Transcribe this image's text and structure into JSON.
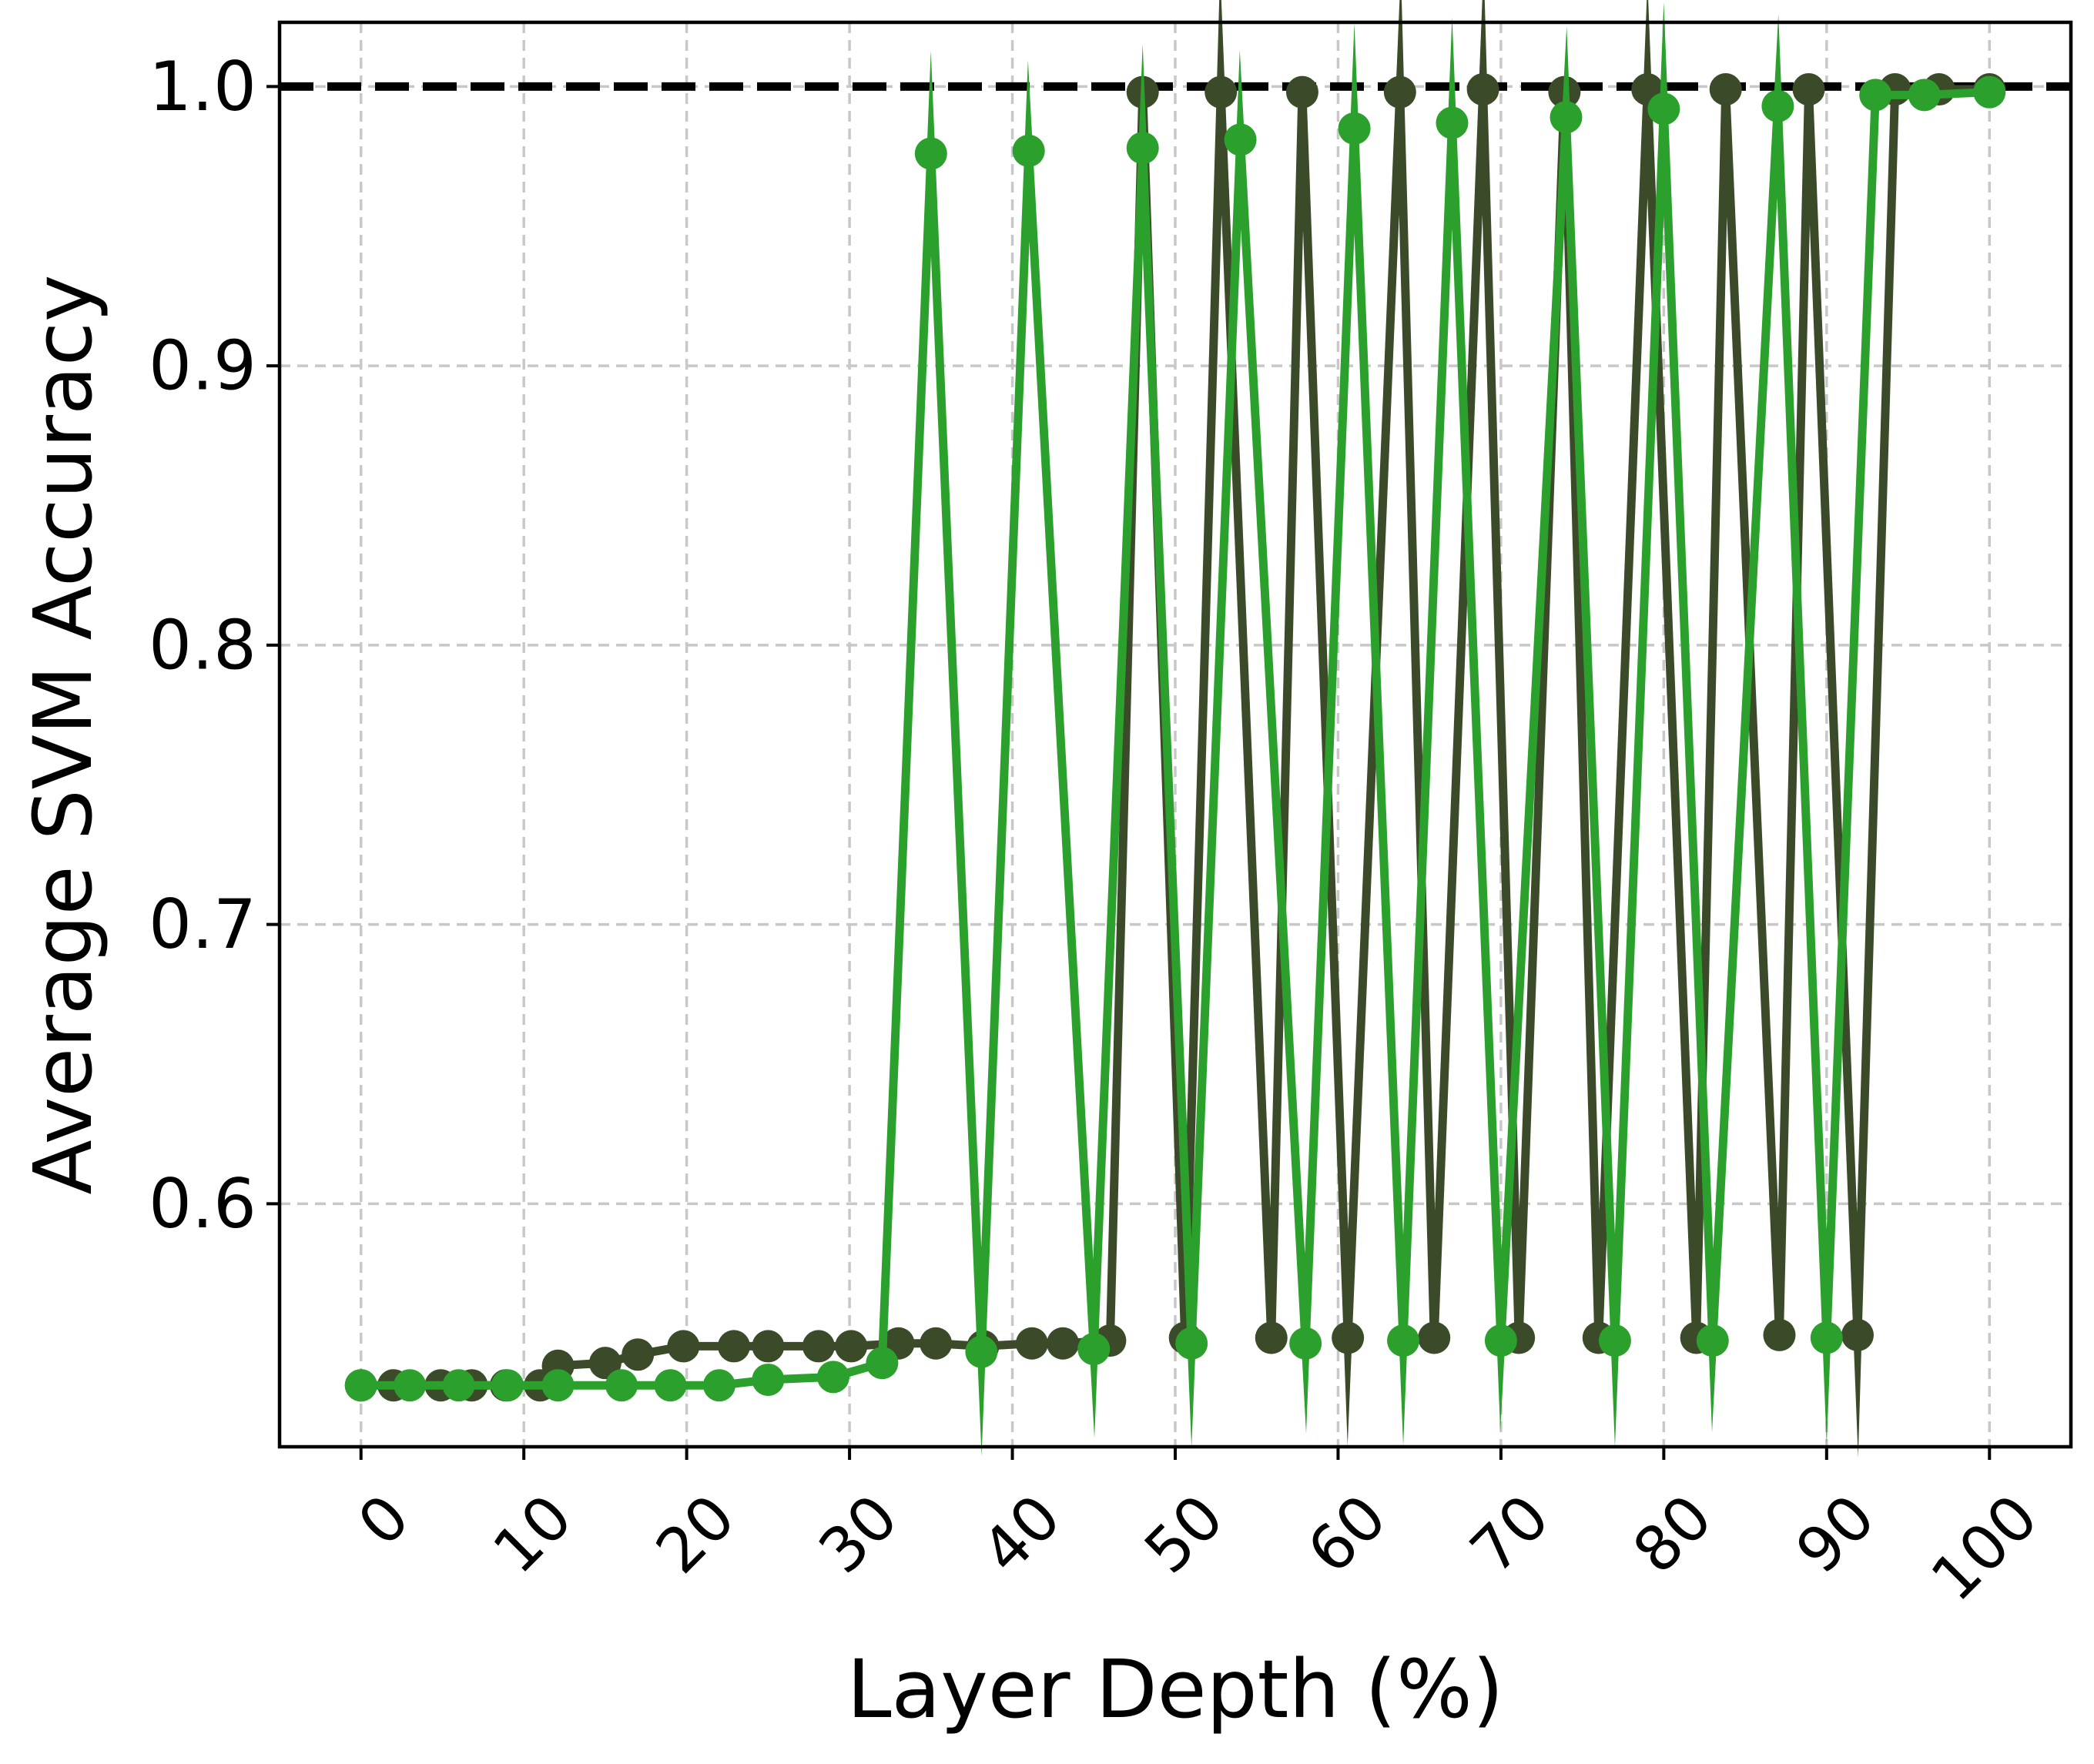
{
  "chart_data": {
    "type": "line",
    "xlabel": "Layer Depth (%)",
    "ylabel": "Average SVM Accuracy",
    "xlim": [
      -5,
      105
    ],
    "ylim": [
      0.513,
      1.023
    ],
    "xticks": [
      0,
      10,
      20,
      30,
      40,
      50,
      60,
      70,
      80,
      90,
      100
    ],
    "xtick_labels": [
      "0",
      "10",
      "20",
      "30",
      "40",
      "50",
      "60",
      "70",
      "80",
      "90",
      "100"
    ],
    "yticks": [
      0.6,
      0.7,
      0.8,
      0.9,
      1.0
    ],
    "ytick_labels": [
      "0.6",
      "0.7",
      "0.8",
      "0.9",
      "1.0"
    ],
    "grid": true,
    "reference_line": {
      "y": 1.0,
      "style": "dashed",
      "color": "#000000"
    },
    "series": [
      {
        "color": "#3b4a28",
        "x": [
          0,
          2,
          4.9,
          6.8,
          8.9,
          11,
          12.1,
          15,
          17,
          19.8,
          22.9,
          25,
          28.1,
          30.1,
          33,
          35.3,
          38.2,
          41.2,
          43.1,
          46,
          48,
          50.6,
          52.8,
          55.9,
          57.8,
          60.6,
          63.8,
          65.9,
          68.9,
          71.1,
          73.9,
          76,
          79,
          82,
          83.8,
          87.1,
          88.9,
          91.9,
          94.2,
          96.9,
          100
        ],
        "y": [
          0.535,
          0.535,
          0.535,
          0.535,
          0.535,
          0.535,
          0.542,
          0.543,
          0.546,
          0.549,
          0.549,
          0.549,
          0.549,
          0.549,
          0.55,
          0.55,
          0.549,
          0.55,
          0.55,
          0.551,
          0.998,
          0.552,
          0.998,
          0.552,
          0.998,
          0.552,
          0.998,
          0.552,
          0.999,
          0.552,
          0.998,
          0.552,
          0.999,
          0.552,
          0.999,
          0.553,
          0.999,
          0.553,
          0.999,
          0.999,
          0.999
        ]
      },
      {
        "color": "#2ca02c",
        "x": [
          0,
          3,
          6,
          9,
          12.1,
          16,
          19,
          22,
          25,
          29,
          32,
          35,
          38.1,
          41,
          45,
          48,
          51,
          54,
          58,
          61,
          64,
          67,
          70,
          74,
          77,
          80,
          83,
          87,
          90,
          93,
          96,
          100
        ],
        "y": [
          0.535,
          0.535,
          0.535,
          0.535,
          0.535,
          0.535,
          0.535,
          0.535,
          0.537,
          0.538,
          0.543,
          0.976,
          0.547,
          0.977,
          0.548,
          0.978,
          0.55,
          0.981,
          0.55,
          0.985,
          0.551,
          0.987,
          0.551,
          0.989,
          0.551,
          0.992,
          0.551,
          0.993,
          0.552,
          0.997,
          0.997,
          0.998
        ]
      }
    ]
  }
}
